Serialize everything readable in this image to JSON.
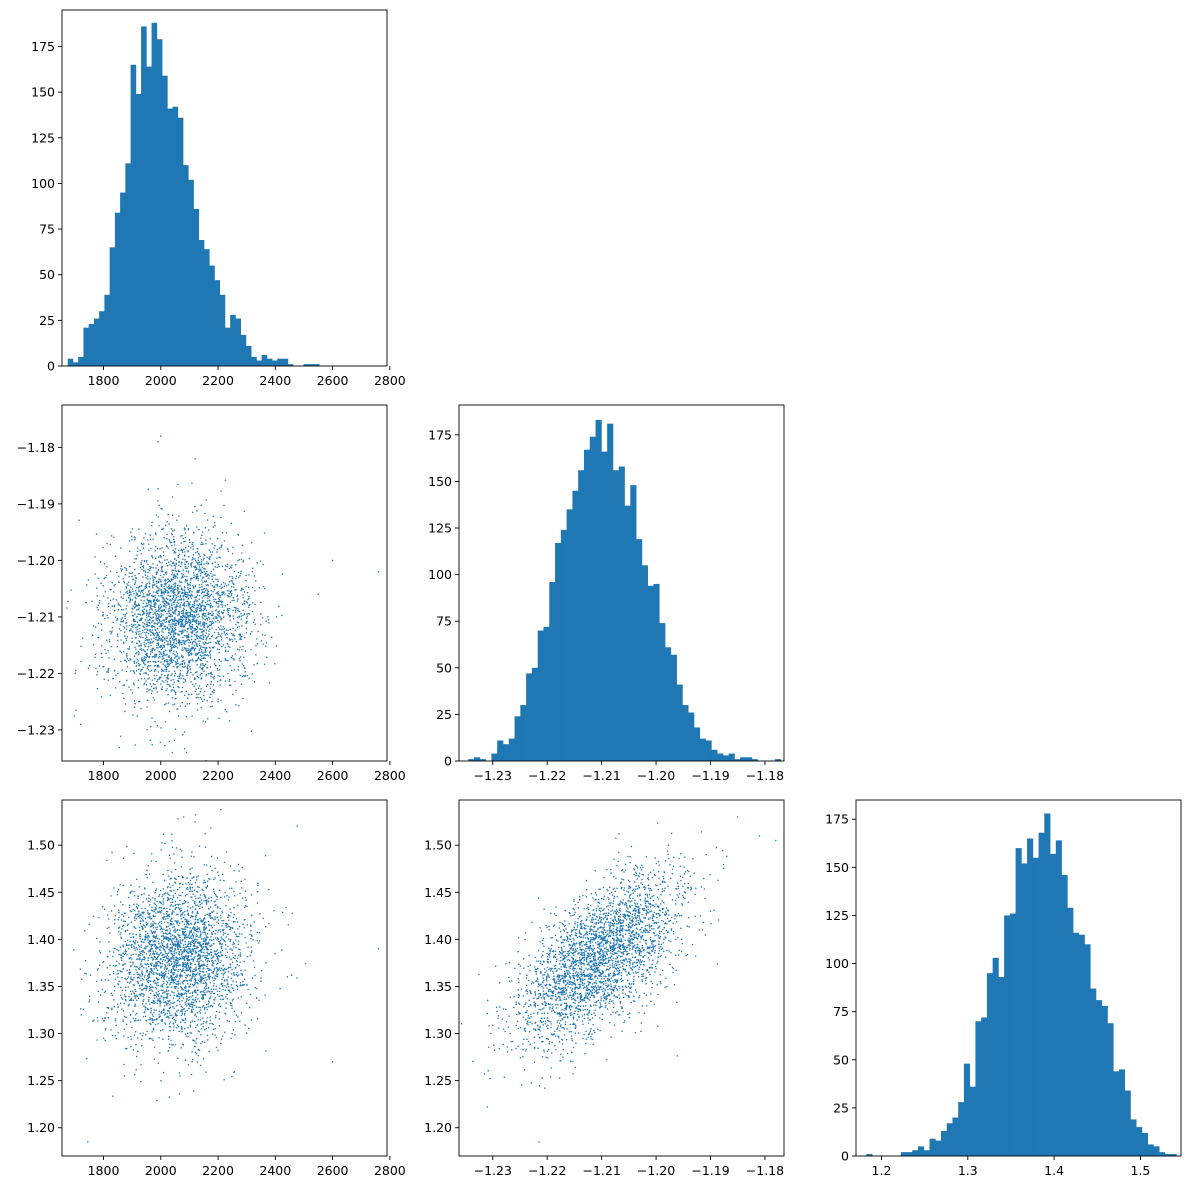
{
  "chart_data": [
    {
      "id": "hist-a",
      "type": "bar",
      "subtype": "histogram",
      "row": 0,
      "col": 0,
      "title": "",
      "xlabel": "",
      "ylabel": "",
      "xlim": [
        1655,
        2790
      ],
      "ylim": [
        0,
        195
      ],
      "bin_start": 1675,
      "bin_width": 18.3,
      "values": [
        4,
        2,
        5,
        21,
        23,
        26,
        30,
        39,
        65,
        84,
        95,
        111,
        165,
        149,
        186,
        164,
        188,
        179,
        159,
        141,
        142,
        136,
        110,
        102,
        86,
        69,
        64,
        55,
        47,
        39,
        21,
        28,
        26,
        17,
        11,
        5,
        3,
        6,
        4,
        3,
        4,
        4,
        1,
        0,
        0,
        1,
        1,
        1,
        0,
        0,
        0,
        0,
        0,
        0,
        0,
        0,
        0,
        0,
        0,
        0,
        0,
        0,
        1
      ],
      "color": "#1f77b4",
      "xticks": [
        1800,
        2000,
        2200,
        2400,
        2600,
        2800
      ],
      "xtick_labels": [
        "1800",
        "2000",
        "2200",
        "2400",
        "2600",
        "2800"
      ],
      "yticks": [
        0,
        25,
        50,
        75,
        100,
        125,
        150,
        175
      ],
      "ytick_labels": [
        "0",
        "25",
        "50",
        "75",
        "100",
        "125",
        "150",
        "175"
      ]
    },
    {
      "id": "scatter-ab",
      "type": "scatter",
      "row": 1,
      "col": 0,
      "title": "",
      "xlabel": "",
      "ylabel": "",
      "xlim": [
        1655,
        2790
      ],
      "ylim": [
        -1.2355,
        -1.1725
      ],
      "n_points": 3000,
      "mean": [
        2060,
        -1.2105
      ],
      "std": [
        125,
        0.0075
      ],
      "correlation": 0.05,
      "outliers": [
        [
          2000,
          -1.178
        ],
        [
          1990,
          -1.179
        ],
        [
          2120,
          -1.182
        ],
        [
          2760,
          -1.202
        ],
        [
          2600,
          -1.2
        ],
        [
          2550,
          -1.206
        ],
        [
          1720,
          -1.229
        ],
        [
          2030,
          -1.232
        ],
        [
          2040,
          -1.234
        ]
      ],
      "color": "#1f77b4",
      "xticks": [
        1800,
        2000,
        2200,
        2400,
        2600,
        2800
      ],
      "xtick_labels": [
        "1800",
        "2000",
        "2200",
        "2400",
        "2600",
        "2800"
      ],
      "yticks": [
        -1.23,
        -1.22,
        -1.21,
        -1.2,
        -1.19,
        -1.18
      ],
      "ytick_labels": [
        "−1.23",
        "−1.22",
        "−1.21",
        "−1.20",
        "−1.19",
        "−1.18"
      ]
    },
    {
      "id": "hist-b",
      "type": "bar",
      "subtype": "histogram",
      "row": 1,
      "col": 1,
      "title": "",
      "xlabel": "",
      "ylabel": "",
      "xlim": [
        -1.2362,
        -1.1765
      ],
      "ylim": [
        0,
        191
      ],
      "bin_start": -1.2345,
      "bin_width": 0.001063,
      "values": [
        1,
        2,
        1,
        0,
        4,
        11,
        9,
        12,
        24,
        30,
        47,
        50,
        70,
        72,
        96,
        117,
        124,
        135,
        145,
        156,
        167,
        174,
        183,
        166,
        181,
        156,
        158,
        137,
        148,
        119,
        105,
        94,
        95,
        74,
        61,
        57,
        41,
        30,
        26,
        18,
        12,
        11,
        6,
        4,
        3,
        4,
        1,
        2,
        2,
        1,
        0,
        0,
        0,
        1
      ],
      "color": "#1f77b4",
      "xticks": [
        -1.23,
        -1.22,
        -1.21,
        -1.2,
        -1.19,
        -1.18
      ],
      "xtick_labels": [
        "−1.23",
        "−1.22",
        "−1.21",
        "−1.20",
        "−1.19",
        "−1.18"
      ],
      "yticks": [
        0,
        25,
        50,
        75,
        100,
        125,
        150,
        175
      ],
      "ytick_labels": [
        "0",
        "25",
        "50",
        "75",
        "100",
        "125",
        "150",
        "175"
      ]
    },
    {
      "id": "scatter-ac",
      "type": "scatter",
      "row": 2,
      "col": 0,
      "title": "",
      "xlabel": "",
      "ylabel": "",
      "xlim": [
        1655,
        2790
      ],
      "ylim": [
        1.17,
        1.548
      ],
      "n_points": 3000,
      "mean": [
        2060,
        1.38
      ],
      "std": [
        125,
        0.045
      ],
      "correlation": 0.08,
      "outliers": [
        [
          1745,
          1.185
        ],
        [
          2760,
          1.39
        ],
        [
          2600,
          1.27
        ],
        [
          2060,
          1.528
        ],
        [
          2080,
          1.53
        ],
        [
          2120,
          1.525
        ]
      ],
      "color": "#1f77b4",
      "xticks": [
        1800,
        2000,
        2200,
        2400,
        2600,
        2800
      ],
      "xtick_labels": [
        "1800",
        "2000",
        "2200",
        "2400",
        "2600",
        "2800"
      ],
      "yticks": [
        1.2,
        1.25,
        1.3,
        1.35,
        1.4,
        1.45,
        1.5
      ],
      "ytick_labels": [
        "1.20",
        "1.25",
        "1.30",
        "1.35",
        "1.40",
        "1.45",
        "1.50"
      ]
    },
    {
      "id": "scatter-bc",
      "type": "scatter",
      "row": 2,
      "col": 1,
      "title": "",
      "xlabel": "",
      "ylabel": "",
      "xlim": [
        -1.2362,
        -1.1765
      ],
      "ylim": [
        1.17,
        1.548
      ],
      "n_points": 3000,
      "mean": [
        -1.2105,
        1.38
      ],
      "std": [
        0.0075,
        0.045
      ],
      "correlation": 0.62,
      "outliers": [
        [
          -1.2215,
          1.185
        ],
        [
          -1.231,
          1.222
        ],
        [
          -1.185,
          1.53
        ],
        [
          -1.178,
          1.505
        ],
        [
          -1.181,
          1.51
        ],
        [
          -1.19,
          1.43
        ]
      ],
      "color": "#1f77b4",
      "xticks": [
        -1.23,
        -1.22,
        -1.21,
        -1.2,
        -1.19,
        -1.18
      ],
      "xtick_labels": [
        "−1.23",
        "−1.22",
        "−1.21",
        "−1.20",
        "−1.19",
        "−1.18"
      ],
      "yticks": [
        1.2,
        1.25,
        1.3,
        1.35,
        1.4,
        1.45,
        1.5
      ],
      "ytick_labels": [
        "1.20",
        "1.25",
        "1.30",
        "1.35",
        "1.40",
        "1.45",
        "1.50"
      ]
    },
    {
      "id": "hist-c",
      "type": "bar",
      "subtype": "histogram",
      "row": 2,
      "col": 2,
      "title": "",
      "xlabel": "",
      "ylabel": "",
      "xlim": [
        1.1705,
        1.547
      ],
      "ylim": [
        0,
        185
      ],
      "bin_start": 1.1825,
      "bin_width": 0.00665,
      "values": [
        1,
        0,
        0,
        0,
        0,
        0,
        2,
        2,
        3,
        5,
        3,
        9,
        8,
        13,
        17,
        20,
        28,
        48,
        36,
        70,
        72,
        95,
        103,
        93,
        125,
        126,
        160,
        152,
        165,
        155,
        168,
        178,
        157,
        164,
        146,
        129,
        116,
        115,
        110,
        87,
        81,
        78,
        69,
        44,
        45,
        34,
        19,
        15,
        12,
        6,
        5,
        2,
        1,
        1,
        0,
        0,
        4
      ],
      "color": "#1f77b4",
      "xticks": [
        1.2,
        1.3,
        1.4,
        1.5
      ],
      "xtick_labels": [
        "1.2",
        "1.3",
        "1.4",
        "1.5"
      ],
      "yticks": [
        0,
        25,
        50,
        75,
        100,
        125,
        150,
        175
      ],
      "ytick_labels": [
        "0",
        "25",
        "50",
        "75",
        "100",
        "125",
        "150",
        "175"
      ]
    }
  ]
}
